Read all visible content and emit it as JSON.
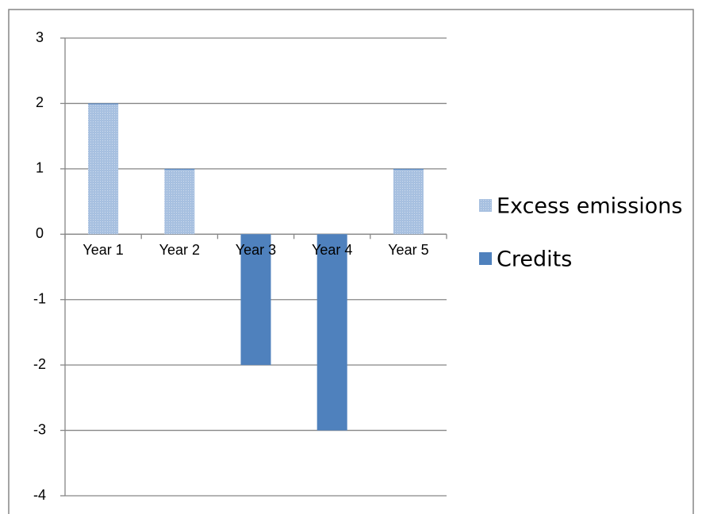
{
  "chart_data": {
    "type": "bar",
    "stacked": true,
    "categories": [
      "Year 1",
      "Year 2",
      "Year 3",
      "Year 4",
      "Year 5"
    ],
    "series": [
      {
        "name": "Excess emissions",
        "color": "#a7c0e0",
        "pattern": "dotted",
        "values": [
          2,
          1,
          0,
          0,
          1
        ]
      },
      {
        "name": "Credits",
        "color": "#4f81bd",
        "values": [
          0,
          0,
          -2,
          -3,
          0
        ]
      }
    ],
    "ylim": [
      -4,
      3
    ],
    "yticks": [
      -4,
      -3,
      -2,
      -1,
      0,
      1,
      2,
      3
    ],
    "grid": true,
    "legend": "right"
  }
}
